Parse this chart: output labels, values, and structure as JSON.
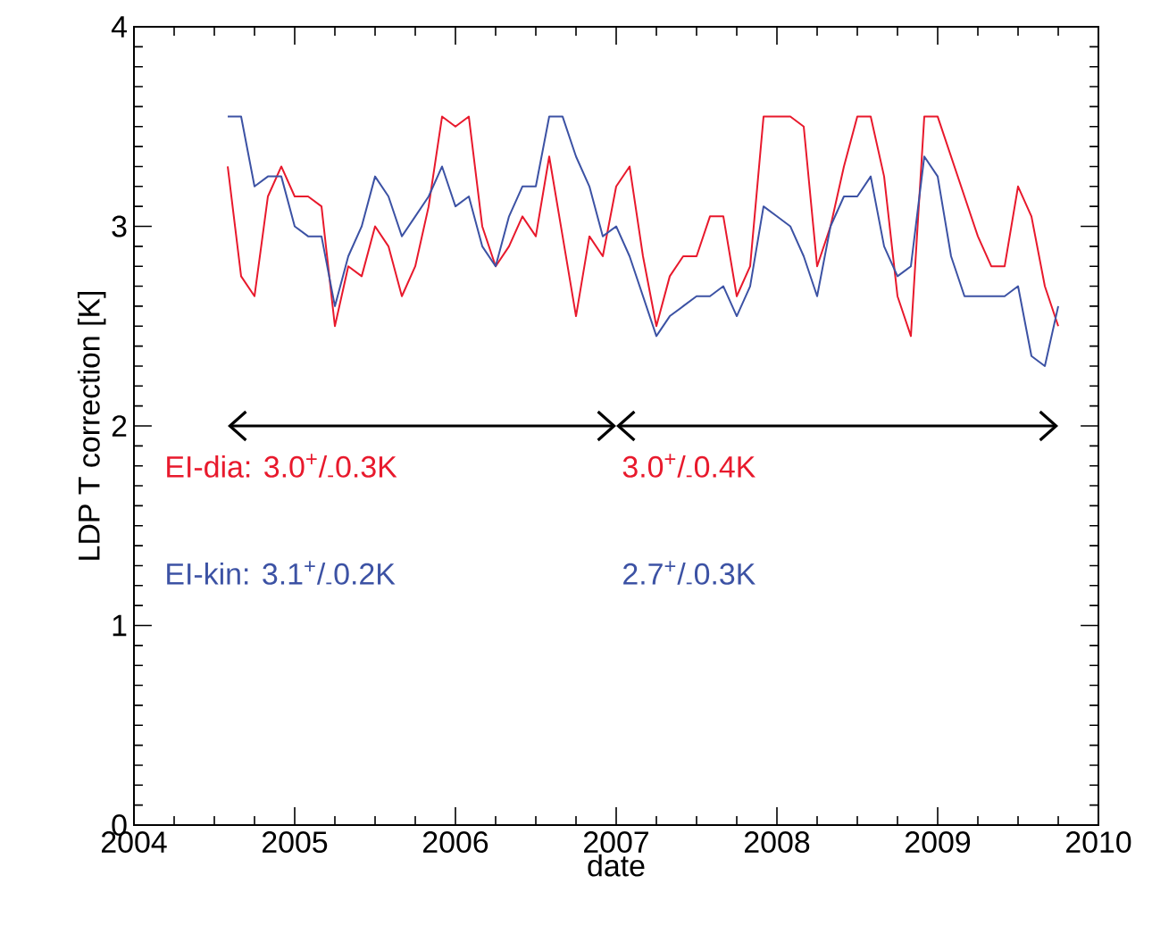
{
  "chart_data": {
    "type": "line",
    "xlabel": "date",
    "ylabel": "LDP T correction [K]",
    "x": [
      "2004-08",
      "2004-09",
      "2004-10",
      "2004-11",
      "2004-12",
      "2005-01",
      "2005-02",
      "2005-03",
      "2005-04",
      "2005-05",
      "2005-06",
      "2005-07",
      "2005-08",
      "2005-09",
      "2005-10",
      "2005-11",
      "2005-12",
      "2006-01",
      "2006-02",
      "2006-03",
      "2006-04",
      "2006-05",
      "2006-06",
      "2006-07",
      "2006-08",
      "2006-09",
      "2006-10",
      "2006-11",
      "2006-12",
      "2007-01",
      "2007-02",
      "2007-03",
      "2007-04",
      "2007-05",
      "2007-06",
      "2007-07",
      "2007-08",
      "2007-09",
      "2007-10",
      "2007-11",
      "2007-12",
      "2008-01",
      "2008-02",
      "2008-03",
      "2008-04",
      "2008-05",
      "2008-06",
      "2008-07",
      "2008-08",
      "2008-09",
      "2008-10",
      "2008-11",
      "2008-12",
      "2009-01",
      "2009-02",
      "2009-03",
      "2009-04",
      "2009-05",
      "2009-06",
      "2009-07",
      "2009-08",
      "2009-09",
      "2009-10"
    ],
    "series": [
      {
        "color": "#e8192c",
        "values": [
          3.3,
          2.75,
          2.65,
          3.15,
          3.3,
          3.15,
          3.15,
          3.1,
          2.5,
          2.8,
          2.75,
          3.0,
          2.9,
          2.65,
          2.8,
          3.1,
          3.55,
          3.5,
          3.55,
          3.0,
          2.8,
          2.9,
          3.05,
          2.95,
          3.35,
          2.95,
          2.55,
          2.95,
          2.85,
          3.2,
          3.3,
          2.85,
          2.5,
          2.75,
          2.85,
          2.85,
          3.05,
          3.05,
          2.65,
          2.8,
          3.55,
          3.55,
          3.55,
          3.5,
          2.8,
          3.0,
          3.3,
          3.55,
          3.55,
          3.25,
          2.65,
          2.45,
          3.55,
          3.55,
          3.35,
          3.15,
          2.95,
          2.8,
          2.8,
          3.2,
          3.05,
          2.7,
          2.5
        ]
      },
      {
        "color": "#3c52a4",
        "values": [
          3.55,
          3.55,
          3.2,
          3.25,
          3.25,
          3.0,
          2.95,
          2.95,
          2.6,
          2.85,
          3.0,
          3.25,
          3.15,
          2.95,
          3.05,
          3.15,
          3.3,
          3.1,
          3.15,
          2.9,
          2.8,
          3.05,
          3.2,
          3.2,
          3.55,
          3.55,
          3.35,
          3.2,
          2.95,
          3.0,
          2.85,
          2.65,
          2.45,
          2.55,
          2.6,
          2.65,
          2.65,
          2.7,
          2.55,
          2.7,
          3.1,
          3.05,
          3.0,
          2.85,
          2.65,
          3.0,
          3.15,
          3.15,
          3.25,
          2.9,
          2.75,
          2.8,
          3.35,
          3.25,
          2.85,
          2.65,
          2.65,
          2.65,
          2.65,
          2.7,
          2.35,
          2.3,
          2.6
        ]
      }
    ],
    "xlim": [
      "2004",
      "2010"
    ],
    "xticks": [
      "2004",
      "2005",
      "2006",
      "2007",
      "2008",
      "2009",
      "2010"
    ],
    "ylim": [
      0,
      4
    ],
    "yticks": [
      0,
      1,
      2,
      3,
      4
    ],
    "annotations": [
      "EI-dia: 3.0$^{+}$/$_{-}$0.3K",
      "3.0$^{+}$/$_{-}$0.4K",
      "EI-kin: 3.1$^{+}$/$_{-}$0.2K",
      "2.7$^{+}$/$_{-}$0.3K"
    ]
  }
}
